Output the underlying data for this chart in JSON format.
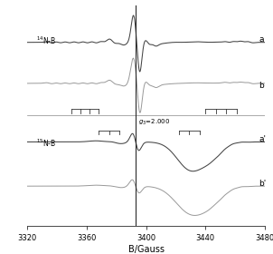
{
  "xlim": [
    3320,
    3480
  ],
  "xlabel": "B/Gauss",
  "g3_field": 3393,
  "color_exp": "#444444",
  "color_sim": "#999999",
  "color_vline": "#222222",
  "color_sep": "#888888",
  "xticks": [
    3320,
    3360,
    3400,
    3440,
    3480
  ]
}
